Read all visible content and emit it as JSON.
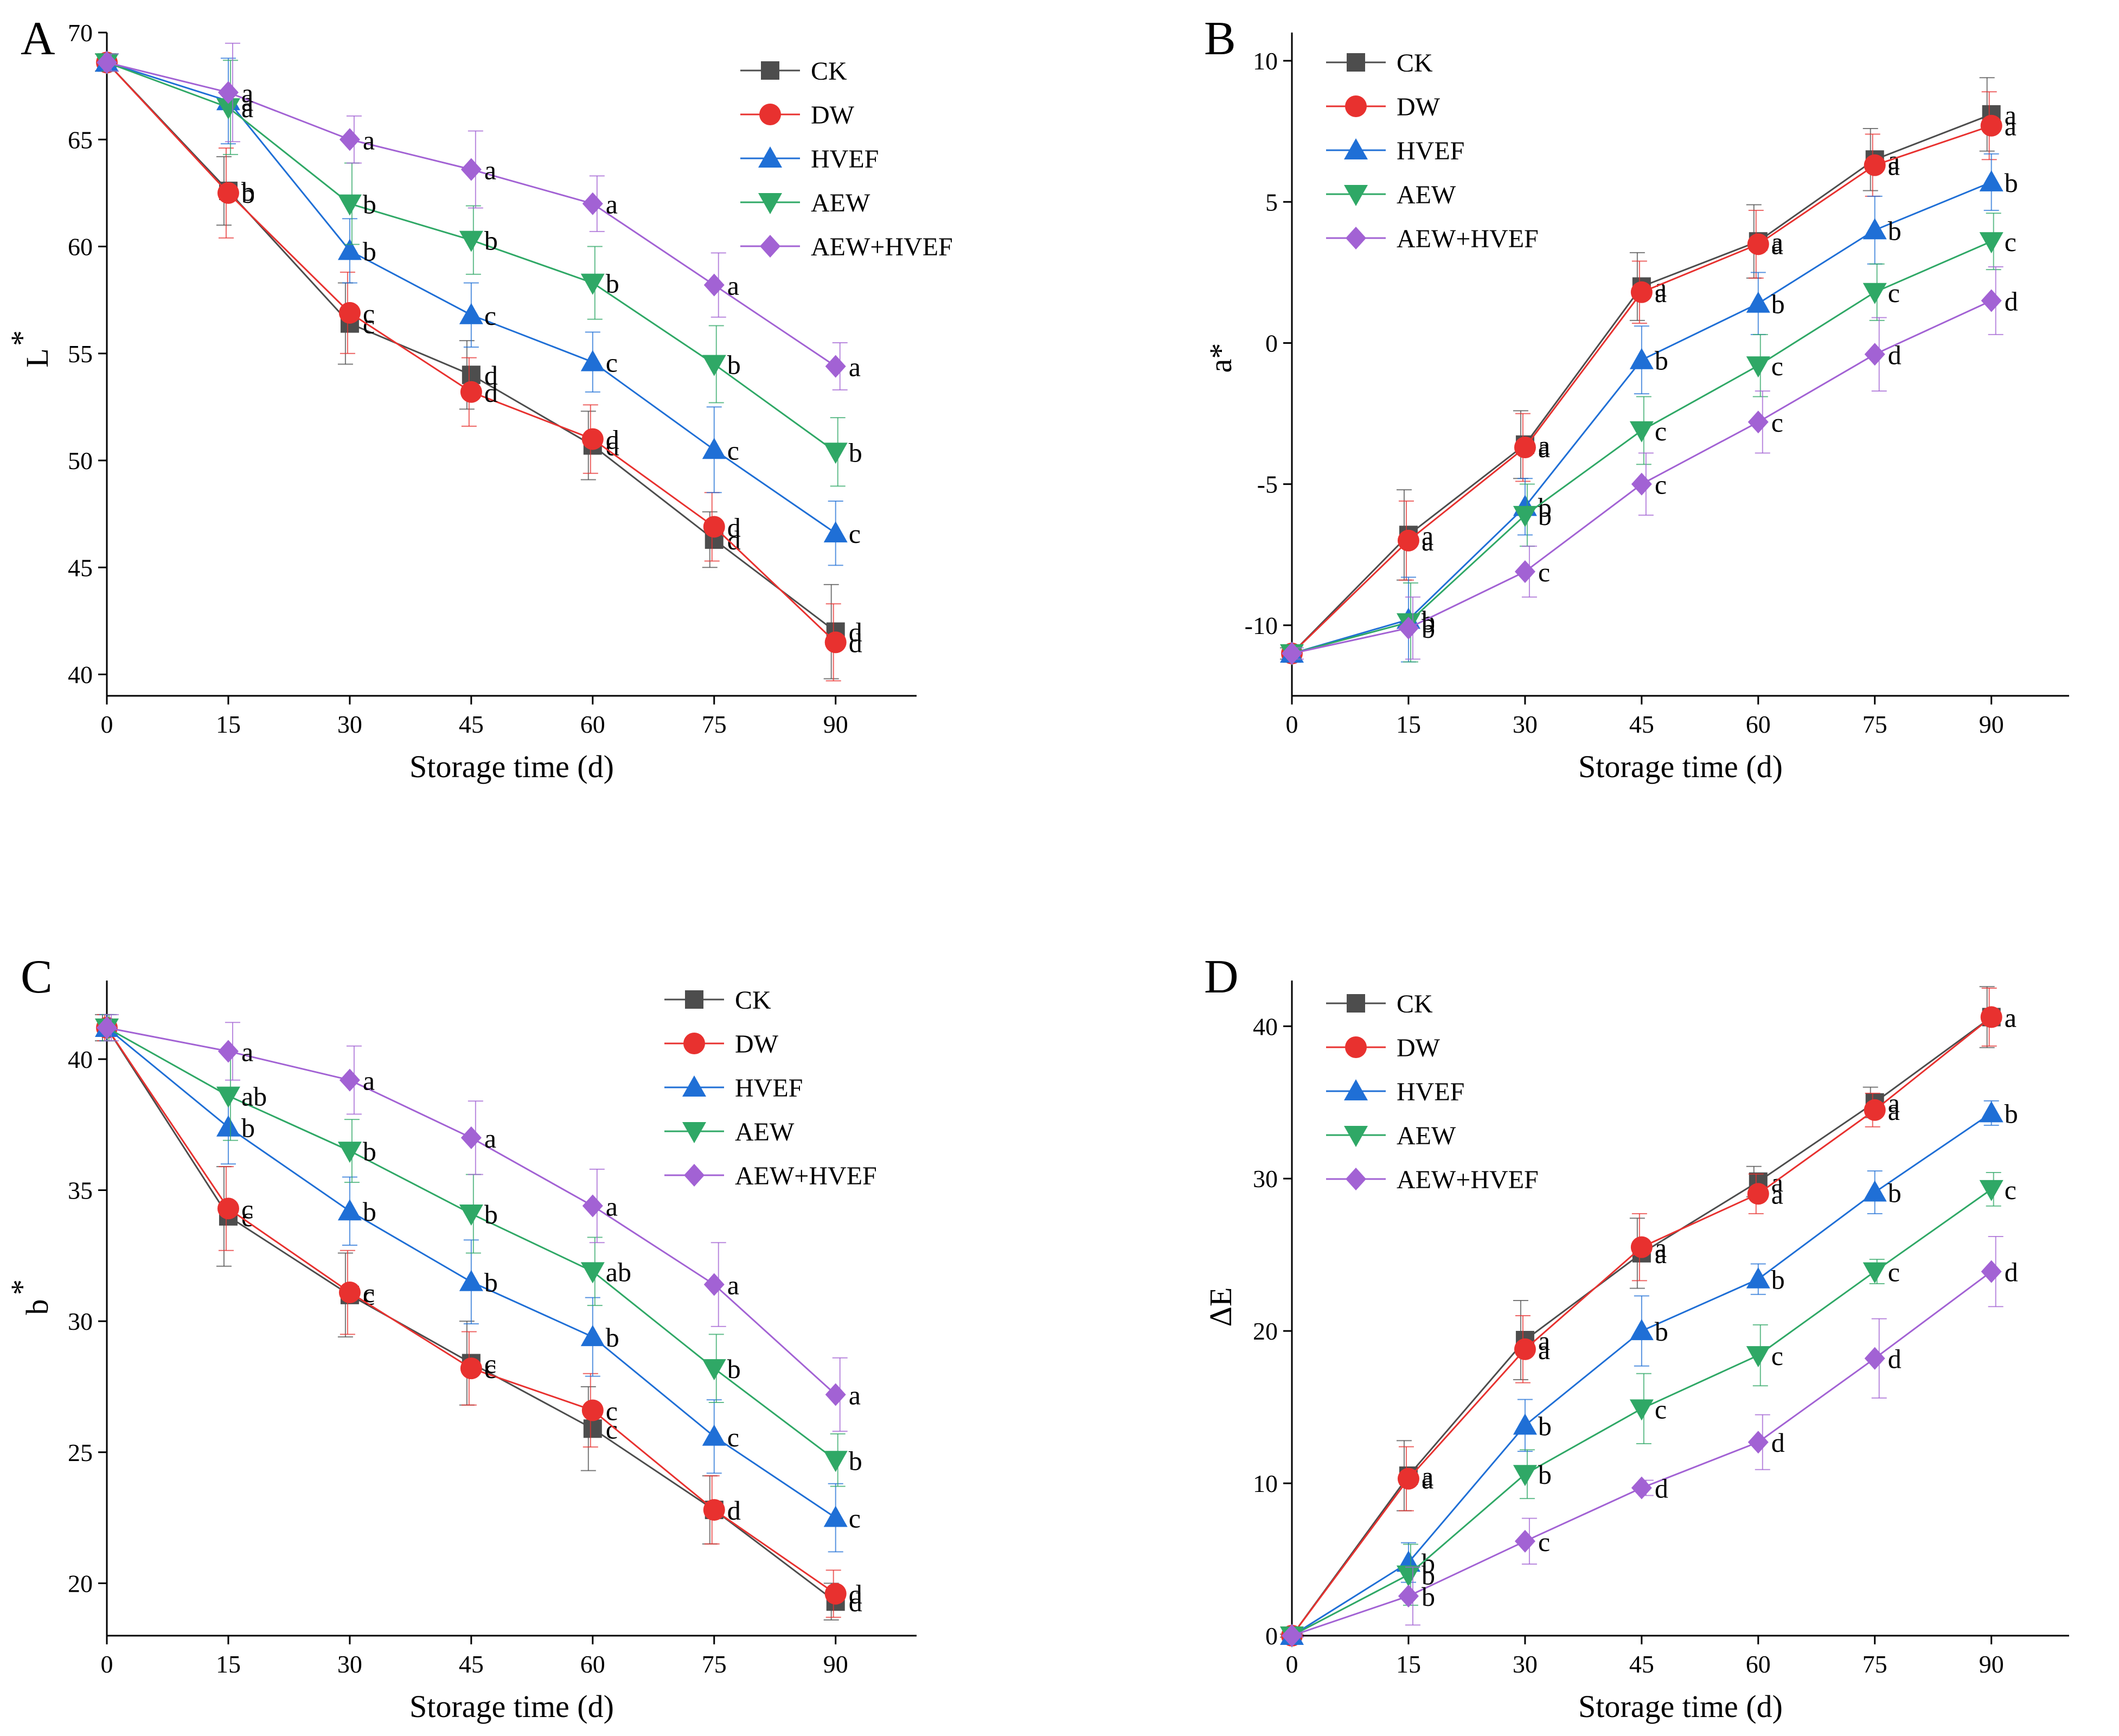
{
  "chart_data": [
    {
      "type": "line",
      "panel_letter": "A",
      "ylabel": "L*",
      "ylabel_main": "L",
      "ylabel_sup": "*",
      "xlabel": "Storage time (d)",
      "x": [
        0,
        15,
        30,
        45,
        60,
        75,
        90
      ],
      "x_tick_labels": [
        "0",
        "15",
        "30",
        "45",
        "60",
        "75",
        "90"
      ],
      "xlim": [
        0,
        100
      ],
      "ylim": [
        39,
        70
      ],
      "y_ticks": [
        40,
        45,
        50,
        55,
        60,
        65,
        70
      ],
      "y_tick_labels": [
        "40",
        "45",
        "50",
        "55",
        "60",
        "65",
        "70"
      ],
      "legend_position": "top-right",
      "series": [
        {
          "name": "CK",
          "color": "#4d4d4d",
          "marker": "square",
          "values": [
            68.6,
            62.6,
            56.4,
            54.0,
            50.7,
            46.3,
            42.0
          ],
          "errors": [
            0.4,
            1.6,
            1.9,
            1.6,
            1.6,
            1.3,
            2.2
          ],
          "letters": [
            "",
            "b",
            "c",
            "d",
            "d",
            "d",
            "d"
          ]
        },
        {
          "name": "DW",
          "color": "#e8312f",
          "marker": "circle",
          "values": [
            68.6,
            62.5,
            56.9,
            53.2,
            51.0,
            46.9,
            41.5
          ],
          "errors": [
            0.4,
            2.1,
            1.9,
            1.6,
            1.6,
            1.6,
            1.8
          ],
          "letters": [
            "",
            "b",
            "c",
            "d",
            "d",
            "d",
            "d"
          ]
        },
        {
          "name": "HVEF",
          "color": "#1f6fd6",
          "marker": "triangle-up",
          "values": [
            68.6,
            66.8,
            59.8,
            56.8,
            54.6,
            50.5,
            46.6
          ],
          "errors": [
            0.4,
            2.0,
            1.5,
            1.5,
            1.4,
            2.0,
            1.5
          ],
          "letters": [
            "",
            "a",
            "b",
            "c",
            "c",
            "c",
            "c"
          ]
        },
        {
          "name": "AEW",
          "color": "#2fa866",
          "marker": "triangle-down",
          "values": [
            68.6,
            66.5,
            62.0,
            60.3,
            58.3,
            54.5,
            50.4
          ],
          "errors": [
            0.4,
            2.2,
            1.9,
            1.6,
            1.7,
            1.8,
            1.6
          ],
          "letters": [
            "",
            "a",
            "b",
            "b",
            "b",
            "b",
            "b"
          ]
        },
        {
          "name": "AEW+HVEF",
          "color": "#a262d4",
          "marker": "diamond",
          "values": [
            68.6,
            67.2,
            65.0,
            63.6,
            62.0,
            58.2,
            54.4
          ],
          "errors": [
            0.4,
            2.3,
            1.1,
            1.8,
            1.3,
            1.5,
            1.1
          ],
          "letters": [
            "",
            "a",
            "a",
            "a",
            "a",
            "a",
            "a"
          ]
        }
      ]
    },
    {
      "type": "line",
      "panel_letter": "B",
      "ylabel": "a*",
      "ylabel_main": "a*",
      "ylabel_sup": "",
      "xlabel": "Storage time (d)",
      "x": [
        0,
        15,
        30,
        45,
        60,
        75,
        90
      ],
      "x_tick_labels": [
        "0",
        "15",
        "30",
        "45",
        "60",
        "75",
        "90"
      ],
      "xlim": [
        0,
        100
      ],
      "ylim": [
        -12.5,
        11
      ],
      "y_ticks": [
        -10,
        -5,
        0,
        5,
        10
      ],
      "y_tick_labels": [
        "-10",
        "-5",
        "0",
        "5",
        "10"
      ],
      "legend_position": "top-left",
      "series": [
        {
          "name": "CK",
          "color": "#4d4d4d",
          "marker": "square",
          "values": [
            -11.0,
            -6.8,
            -3.6,
            2.0,
            3.6,
            6.5,
            8.1
          ],
          "errors": [
            0.2,
            1.6,
            1.2,
            1.2,
            1.3,
            1.1,
            1.3
          ],
          "letters": [
            "",
            "a",
            "a",
            "a",
            "a",
            "a",
            "a"
          ]
        },
        {
          "name": "DW",
          "color": "#e8312f",
          "marker": "circle",
          "values": [
            -11.0,
            -7.0,
            -3.7,
            1.8,
            3.5,
            6.3,
            7.7
          ],
          "errors": [
            0.2,
            1.4,
            1.2,
            1.1,
            1.2,
            1.1,
            1.2
          ],
          "letters": [
            "",
            "a",
            "a",
            "a",
            "a",
            "a",
            "a"
          ]
        },
        {
          "name": "HVEF",
          "color": "#1f6fd6",
          "marker": "triangle-up",
          "values": [
            -11.0,
            -9.8,
            -5.8,
            -0.6,
            1.4,
            4.0,
            5.7
          ],
          "errors": [
            0.2,
            1.5,
            1.0,
            1.2,
            1.1,
            1.2,
            1.0
          ],
          "letters": [
            "",
            "b",
            "b",
            "b",
            "b",
            "b",
            "b"
          ]
        },
        {
          "name": "AEW",
          "color": "#2fa866",
          "marker": "triangle-down",
          "values": [
            -11.0,
            -9.9,
            -6.1,
            -3.1,
            -0.8,
            1.8,
            3.6
          ],
          "errors": [
            0.2,
            1.4,
            1.1,
            1.2,
            1.1,
            1.0,
            1.0
          ],
          "letters": [
            "",
            "b",
            "b",
            "c",
            "c",
            "c",
            "c"
          ]
        },
        {
          "name": "AEW+HVEF",
          "color": "#a262d4",
          "marker": "diamond",
          "values": [
            -11.0,
            -10.1,
            -8.1,
            -5.0,
            -2.8,
            -0.4,
            1.5
          ],
          "errors": [
            0.2,
            1.1,
            0.9,
            1.1,
            1.1,
            1.3,
            1.2
          ],
          "letters": [
            "",
            "b",
            "c",
            "c",
            "c",
            "d",
            "d"
          ]
        }
      ]
    },
    {
      "type": "line",
      "panel_letter": "C",
      "ylabel": "b*",
      "ylabel_main": "b",
      "ylabel_sup": "*",
      "xlabel": "Storage time (d)",
      "x": [
        0,
        15,
        30,
        45,
        60,
        75,
        90
      ],
      "x_tick_labels": [
        "0",
        "15",
        "30",
        "45",
        "60",
        "75",
        "90"
      ],
      "xlim": [
        0,
        100
      ],
      "ylim": [
        18,
        43
      ],
      "y_ticks": [
        20,
        25,
        30,
        35,
        40
      ],
      "y_tick_labels": [
        "20",
        "25",
        "30",
        "35",
        "40"
      ],
      "legend_position": "top-right",
      "series": [
        {
          "name": "CK",
          "color": "#4d4d4d",
          "marker": "square",
          "values": [
            41.2,
            34.0,
            31.0,
            28.4,
            25.9,
            22.8,
            19.3
          ],
          "errors": [
            0.5,
            1.9,
            1.6,
            1.6,
            1.6,
            1.3,
            0.7
          ],
          "letters": [
            "",
            "c",
            "c",
            "c",
            "c",
            "d",
            "d"
          ]
        },
        {
          "name": "DW",
          "color": "#e8312f",
          "marker": "circle",
          "values": [
            41.2,
            34.3,
            31.1,
            28.2,
            26.6,
            22.8,
            19.6
          ],
          "errors": [
            0.5,
            1.6,
            1.6,
            1.4,
            1.4,
            1.3,
            0.9
          ],
          "letters": [
            "",
            "c",
            "c",
            "c",
            "c",
            "d",
            "d"
          ]
        },
        {
          "name": "HVEF",
          "color": "#1f6fd6",
          "marker": "triangle-up",
          "values": [
            41.2,
            37.4,
            34.2,
            31.5,
            29.4,
            25.6,
            22.5
          ],
          "errors": [
            0.5,
            1.4,
            1.3,
            1.6,
            1.5,
            1.4,
            1.3
          ],
          "letters": [
            "",
            "b",
            "b",
            "b",
            "b",
            "c",
            "c"
          ]
        },
        {
          "name": "AEW",
          "color": "#2fa866",
          "marker": "triangle-down",
          "values": [
            41.2,
            38.6,
            36.5,
            34.1,
            31.9,
            28.2,
            24.7
          ],
          "errors": [
            0.5,
            1.7,
            1.2,
            1.5,
            1.3,
            1.3,
            1.0
          ],
          "letters": [
            "",
            "ab",
            "b",
            "b",
            "ab",
            "b",
            "b"
          ]
        },
        {
          "name": "AEW+HVEF",
          "color": "#a262d4",
          "marker": "diamond",
          "values": [
            41.2,
            40.3,
            39.2,
            37.0,
            34.4,
            31.4,
            27.2
          ],
          "errors": [
            0.5,
            1.1,
            1.3,
            1.4,
            1.4,
            1.6,
            1.4
          ],
          "letters": [
            "",
            "a",
            "a",
            "a",
            "a",
            "a",
            "a"
          ]
        }
      ]
    },
    {
      "type": "line",
      "panel_letter": "D",
      "ylabel": "ΔE",
      "ylabel_main": "ΔE",
      "ylabel_sup": "",
      "xlabel": "Storage time (d)",
      "x": [
        0,
        15,
        30,
        45,
        60,
        75,
        90
      ],
      "x_tick_labels": [
        "0",
        "15",
        "30",
        "45",
        "60",
        "75",
        "90"
      ],
      "xlim": [
        0,
        100
      ],
      "ylim": [
        0,
        43
      ],
      "y_ticks": [
        0,
        10,
        20,
        30,
        40
      ],
      "y_tick_labels": [
        "0",
        "10",
        "20",
        "30",
        "40"
      ],
      "legend_position": "top-left",
      "series": [
        {
          "name": "CK",
          "color": "#4d4d4d",
          "marker": "square",
          "values": [
            0,
            10.5,
            19.4,
            25.1,
            29.8,
            35.0,
            40.6
          ],
          "errors": [
            0.1,
            2.3,
            2.6,
            2.3,
            1.0,
            1.0,
            2.0
          ],
          "letters": [
            "",
            "a",
            "a",
            "a",
            "a",
            "a",
            "a"
          ]
        },
        {
          "name": "DW",
          "color": "#e8312f",
          "marker": "circle",
          "values": [
            0,
            10.3,
            18.8,
            25.5,
            29.0,
            34.5,
            40.6
          ],
          "errors": [
            0.1,
            2.1,
            2.2,
            2.2,
            1.3,
            1.1,
            1.9
          ],
          "letters": [
            "",
            "a",
            "a",
            "a",
            "a",
            "a",
            "a"
          ]
        },
        {
          "name": "HVEF",
          "color": "#1f6fd6",
          "marker": "triangle-up",
          "values": [
            0,
            4.8,
            13.8,
            20.0,
            23.4,
            29.1,
            34.3
          ],
          "errors": [
            0.1,
            1.3,
            1.7,
            2.3,
            1.0,
            1.4,
            0.8
          ],
          "letters": [
            "",
            "b",
            "b",
            "b",
            "b",
            "b",
            "b"
          ]
        },
        {
          "name": "AEW",
          "color": "#2fa866",
          "marker": "triangle-down",
          "values": [
            0,
            4.0,
            10.6,
            14.9,
            18.4,
            23.9,
            29.3
          ],
          "errors": [
            0.1,
            2.0,
            1.6,
            2.3,
            2.0,
            0.8,
            1.1
          ],
          "letters": [
            "",
            "b",
            "b",
            "c",
            "c",
            "c",
            "c"
          ]
        },
        {
          "name": "AEW+HVEF",
          "color": "#a262d4",
          "marker": "diamond",
          "values": [
            0,
            2.6,
            6.2,
            9.7,
            12.7,
            18.2,
            23.9
          ],
          "errors": [
            0.1,
            1.9,
            1.5,
            0.5,
            1.8,
            2.6,
            2.3
          ],
          "letters": [
            "",
            "b",
            "c",
            "d",
            "d",
            "d",
            "d"
          ]
        }
      ]
    }
  ]
}
